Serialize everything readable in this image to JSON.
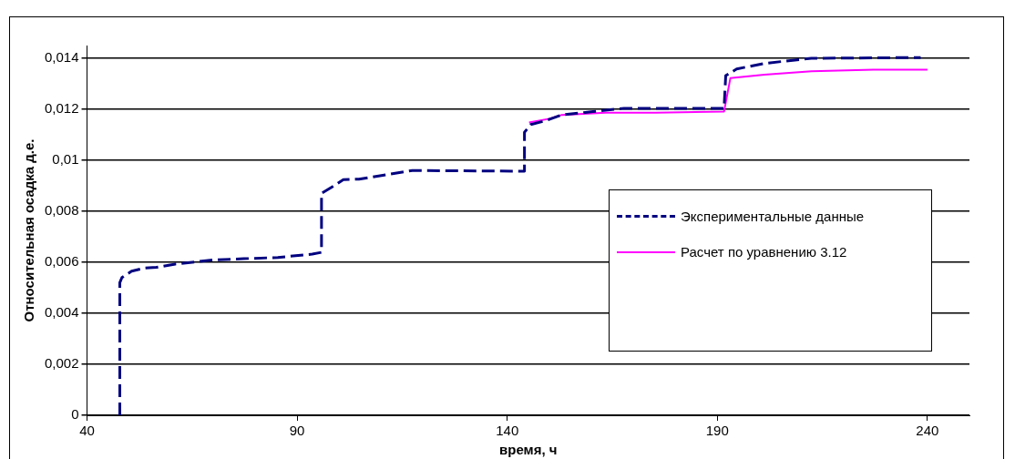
{
  "chart_data": {
    "type": "line",
    "xlabel": "время, ч",
    "ylabel": "Относительная осадка д.е.",
    "xlim": [
      40,
      250
    ],
    "xticks": [
      40,
      90,
      140,
      190,
      240
    ],
    "ylim": [
      0,
      0.0145
    ],
    "yticks": [
      0,
      {
        "value": 0.002,
        "label": "0,002"
      },
      {
        "value": 0.004,
        "label": "0,004"
      },
      {
        "value": 0.006,
        "label": "0,006"
      },
      {
        "value": 0.008,
        "label": "0,008"
      },
      {
        "value": 0.01,
        "label": "0,01"
      },
      {
        "value": 0.012,
        "label": "0,012"
      },
      {
        "value": 0.014,
        "label": "0,014"
      }
    ],
    "grid": "y",
    "legend": "bottom right",
    "marker": "none",
    "series": [
      {
        "name": "Экспериментальные данные",
        "color": "#000080",
        "line_style": "dashed",
        "x": [
          47.8,
          47.8,
          48.3,
          50.6,
          53.5,
          56.5,
          61,
          70,
          77.3,
          85.4,
          93.6,
          95.8,
          95.8,
          98.8,
          101,
          104.7,
          117.4,
          144.1,
          144.1,
          145.6,
          149.3,
          153,
          160.4,
          167.8,
          191.6,
          192,
          194.6,
          201.2,
          212.4,
          238.4
        ],
        "values": [
          0,
          0.0052,
          0.0054,
          0.00565,
          0.00577,
          0.0058,
          0.00593,
          0.00609,
          0.00614,
          0.00619,
          0.00632,
          0.00639,
          0.0087,
          0.009,
          0.00924,
          0.00926,
          0.0096,
          0.00957,
          0.0111,
          0.0114,
          0.01156,
          0.01178,
          0.01191,
          0.01204,
          0.01204,
          0.01332,
          0.01358,
          0.0138,
          0.014,
          0.01403
        ]
      },
      {
        "name": "Расчет по уравнению 3.12",
        "color": "#ff00ff",
        "line_style": "solid",
        "x": [
          145.2,
          150,
          153,
          163.4,
          175.3,
          191.6,
          193.1,
          201.2,
          212.4,
          227.2,
          240
        ],
        "values": [
          0.01148,
          0.01163,
          0.01178,
          0.01187,
          0.01187,
          0.01191,
          0.01322,
          0.01336,
          0.01349,
          0.01355,
          0.01355
        ]
      }
    ]
  }
}
